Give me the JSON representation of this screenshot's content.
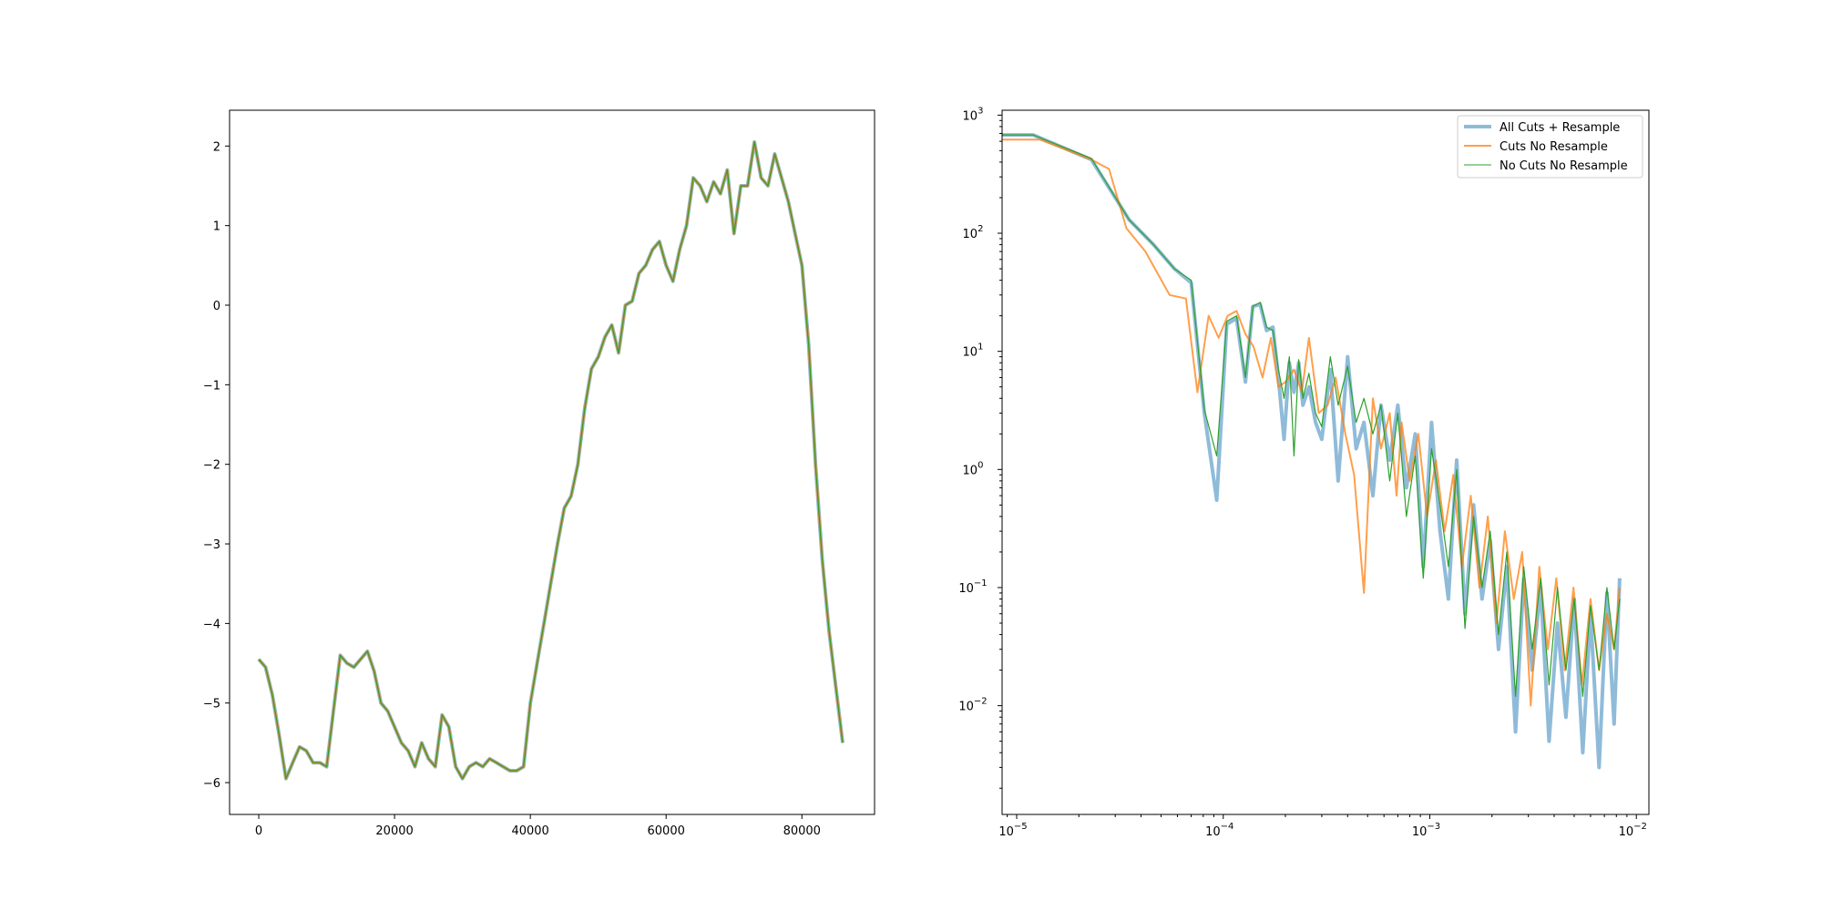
{
  "chart_data": [
    {
      "type": "line",
      "title": "",
      "xlabel": "",
      "ylabel": "",
      "xlim": [
        -4300,
        90700
      ],
      "ylim": [
        -6.4,
        2.45
      ],
      "xscale": "linear",
      "yscale": "linear",
      "xticks": [
        0,
        20000,
        40000,
        60000,
        80000
      ],
      "xtick_labels": [
        "0",
        "20000",
        "40000",
        "60000",
        "80000"
      ],
      "yticks": [
        2,
        1,
        0,
        -1,
        -2,
        -3,
        -4,
        -5,
        -6
      ],
      "ytick_labels": [
        "2",
        "1",
        "0",
        "−1",
        "−2",
        "−3",
        "−4",
        "−5",
        "−6"
      ],
      "grid": false,
      "series": [
        {
          "name": "All Cuts + Resample",
          "color": "#1f77b4",
          "x": [
            0,
            1000,
            2000,
            3000,
            4000,
            5000,
            6000,
            7000,
            8000,
            9000,
            10000,
            11000,
            12000,
            13000,
            14000,
            15000,
            16000,
            17000,
            18000,
            19000,
            20000,
            21000,
            22000,
            23000,
            24000,
            25000,
            26000,
            27000,
            28000,
            29000,
            30000,
            31000,
            32000,
            33000,
            34000,
            35000,
            36000,
            37000,
            38000,
            39000,
            40000,
            41000,
            42000,
            43000,
            44000,
            45000,
            46000,
            47000,
            48000,
            49000,
            50000,
            51000,
            52000,
            53000,
            54000,
            55000,
            56000,
            57000,
            58000,
            59000,
            60000,
            61000,
            62000,
            63000,
            64000,
            65000,
            66000,
            67000,
            68000,
            69000,
            70000,
            71000,
            72000,
            73000,
            74000,
            75000,
            76000,
            77000,
            78000,
            79000,
            80000,
            81000,
            82000,
            83000,
            84000,
            85000,
            86000
          ],
          "y": [
            -4.45,
            -4.55,
            -4.9,
            -5.4,
            -5.95,
            -5.75,
            -5.55,
            -5.6,
            -5.75,
            -5.75,
            -5.8,
            -5.1,
            -4.4,
            -4.5,
            -4.55,
            -4.45,
            -4.35,
            -4.6,
            -5.0,
            -5.1,
            -5.3,
            -5.5,
            -5.6,
            -5.8,
            -5.5,
            -5.7,
            -5.8,
            -5.15,
            -5.3,
            -5.8,
            -5.95,
            -5.8,
            -5.75,
            -5.8,
            -5.7,
            -5.75,
            -5.8,
            -5.85,
            -5.85,
            -5.8,
            -5.0,
            -4.5,
            -4.0,
            -3.5,
            -3.0,
            -2.55,
            -2.4,
            -2.0,
            -1.3,
            -0.8,
            -0.65,
            -0.4,
            -0.25,
            -0.6,
            0.0,
            0.05,
            0.4,
            0.5,
            0.7,
            0.8,
            0.5,
            0.3,
            0.7,
            1.0,
            1.6,
            1.5,
            1.3,
            1.55,
            1.4,
            1.7,
            0.9,
            1.5,
            1.5,
            2.05,
            1.6,
            1.5,
            1.9,
            1.6,
            1.3,
            0.9,
            0.5,
            -0.5,
            -2.0,
            -3.2,
            -4.1,
            -4.8,
            -5.5
          ]
        },
        {
          "name": "Cuts No Resample",
          "color": "#ff7f0e",
          "x": [
            0,
            1000,
            2000,
            3000,
            4000,
            5000,
            6000,
            7000,
            8000,
            9000,
            10000,
            11000,
            12000,
            13000,
            14000,
            15000,
            16000,
            17000,
            18000,
            19000,
            20000,
            21000,
            22000,
            23000,
            24000,
            25000,
            26000,
            27000,
            28000,
            29000,
            30000,
            31000,
            32000,
            33000,
            34000,
            35000,
            36000,
            37000,
            38000,
            39000,
            40000,
            41000,
            42000,
            43000,
            44000,
            45000,
            46000,
            47000,
            48000,
            49000,
            50000,
            51000,
            52000,
            53000,
            54000,
            55000,
            56000,
            57000,
            58000,
            59000,
            60000,
            61000,
            62000,
            63000,
            64000,
            65000,
            66000,
            67000,
            68000,
            69000,
            70000,
            71000,
            72000,
            73000,
            74000,
            75000,
            76000,
            77000,
            78000,
            79000,
            80000,
            81000,
            82000,
            83000,
            84000,
            85000,
            86000
          ],
          "y": [
            -4.45,
            -4.55,
            -4.9,
            -5.4,
            -5.95,
            -5.75,
            -5.55,
            -5.6,
            -5.75,
            -5.75,
            -5.8,
            -5.1,
            -4.4,
            -4.5,
            -4.55,
            -4.45,
            -4.35,
            -4.6,
            -5.0,
            -5.1,
            -5.3,
            -5.5,
            -5.6,
            -5.8,
            -5.5,
            -5.7,
            -5.8,
            -5.15,
            -5.3,
            -5.8,
            -5.95,
            -5.8,
            -5.75,
            -5.8,
            -5.7,
            -5.75,
            -5.8,
            -5.85,
            -5.85,
            -5.8,
            -5.0,
            -4.5,
            -4.0,
            -3.5,
            -3.0,
            -2.55,
            -2.4,
            -2.0,
            -1.3,
            -0.8,
            -0.65,
            -0.4,
            -0.25,
            -0.6,
            0.0,
            0.05,
            0.4,
            0.5,
            0.7,
            0.8,
            0.5,
            0.3,
            0.7,
            1.0,
            1.6,
            1.5,
            1.3,
            1.55,
            1.4,
            1.7,
            0.9,
            1.5,
            1.5,
            2.05,
            1.6,
            1.5,
            1.9,
            1.6,
            1.3,
            0.9,
            0.5,
            -0.5,
            -2.0,
            -3.2,
            -4.1,
            -4.8,
            -5.5
          ]
        },
        {
          "name": "No Cuts No Resample",
          "color": "#2ca02c",
          "x": [
            0,
            1000,
            2000,
            3000,
            4000,
            5000,
            6000,
            7000,
            8000,
            9000,
            10000,
            11000,
            12000,
            13000,
            14000,
            15000,
            16000,
            17000,
            18000,
            19000,
            20000,
            21000,
            22000,
            23000,
            24000,
            25000,
            26000,
            27000,
            28000,
            29000,
            30000,
            31000,
            32000,
            33000,
            34000,
            35000,
            36000,
            37000,
            38000,
            39000,
            40000,
            41000,
            42000,
            43000,
            44000,
            45000,
            46000,
            47000,
            48000,
            49000,
            50000,
            51000,
            52000,
            53000,
            54000,
            55000,
            56000,
            57000,
            58000,
            59000,
            60000,
            61000,
            62000,
            63000,
            64000,
            65000,
            66000,
            67000,
            68000,
            69000,
            70000,
            71000,
            72000,
            73000,
            74000,
            75000,
            76000,
            77000,
            78000,
            79000,
            80000,
            81000,
            82000,
            83000,
            84000,
            85000,
            86000
          ],
          "y": [
            -4.45,
            -4.55,
            -4.9,
            -5.4,
            -5.95,
            -5.75,
            -5.55,
            -5.6,
            -5.75,
            -5.75,
            -5.8,
            -5.1,
            -4.4,
            -4.5,
            -4.55,
            -4.45,
            -4.35,
            -4.6,
            -5.0,
            -5.1,
            -5.3,
            -5.5,
            -5.6,
            -5.8,
            -5.5,
            -5.7,
            -5.8,
            -5.15,
            -5.3,
            -5.8,
            -5.95,
            -5.8,
            -5.75,
            -5.8,
            -5.7,
            -5.75,
            -5.8,
            -5.85,
            -5.85,
            -5.8,
            -5.0,
            -4.5,
            -4.0,
            -3.5,
            -3.0,
            -2.55,
            -2.4,
            -2.0,
            -1.3,
            -0.8,
            -0.65,
            -0.4,
            -0.25,
            -0.6,
            0.0,
            0.05,
            0.4,
            0.5,
            0.7,
            0.8,
            0.5,
            0.3,
            0.7,
            1.0,
            1.6,
            1.5,
            1.3,
            1.55,
            1.4,
            1.7,
            0.9,
            1.5,
            1.5,
            2.05,
            1.6,
            1.5,
            1.9,
            1.6,
            1.3,
            0.9,
            0.5,
            -0.5,
            -2.0,
            -3.2,
            -4.1,
            -4.8,
            -5.5
          ]
        }
      ]
    },
    {
      "type": "line",
      "title": "",
      "xlabel": "",
      "ylabel": "",
      "xscale": "log",
      "yscale": "log",
      "xlim": [
        8.5e-06,
        0.0115
      ],
      "ylim": [
        0.0012,
        1100
      ],
      "xticks": [
        1e-05,
        0.0001,
        0.001,
        0.01
      ],
      "xtick_labels": [
        {
          "base": "10",
          "exp": "−5"
        },
        {
          "base": "10",
          "exp": "−4"
        },
        {
          "base": "10",
          "exp": "−3"
        },
        {
          "base": "10",
          "exp": "−2"
        }
      ],
      "yticks": [
        1000,
        100,
        10,
        1,
        0.1,
        0.01
      ],
      "ytick_labels": [
        {
          "base": "10",
          "exp": "3"
        },
        {
          "base": "10",
          "exp": "2"
        },
        {
          "base": "10",
          "exp": "1"
        },
        {
          "base": "10",
          "exp": "0"
        },
        {
          "base": "10",
          "exp": "−1"
        },
        {
          "base": "10",
          "exp": "−2"
        }
      ],
      "grid": false,
      "legend": {
        "loc": "upper right",
        "entries": [
          "All Cuts + Resample",
          "Cuts No Resample",
          "No Cuts No Resample"
        ]
      },
      "series": [
        {
          "name": "All Cuts + Resample",
          "color": "#1f77b4",
          "x": [
            8.5e-06,
            1.2e-05,
            2.3e-05,
            3.5e-05,
            4.6e-05,
            5.8e-05,
            7e-05,
            8.1e-05,
            9.3e-05,
            0.000104,
            0.000116,
            0.000128,
            0.000139,
            0.000151,
            0.000162,
            0.000174,
            0.000185,
            0.000197,
            0.000209,
            0.00022,
            0.000232,
            0.000243,
            0.00026,
            0.00028,
            0.0003,
            0.00033,
            0.00036,
            0.0004,
            0.00044,
            0.00048,
            0.00053,
            0.00058,
            0.00064,
            0.0007,
            0.00077,
            0.00085,
            0.00093,
            0.00102,
            0.00112,
            0.00123,
            0.00135,
            0.00148,
            0.00163,
            0.00179,
            0.00196,
            0.00215,
            0.00236,
            0.0026,
            0.00285,
            0.00313,
            0.00344,
            0.00378,
            0.00415,
            0.00456,
            0.005,
            0.0055,
            0.006,
            0.0066,
            0.0072,
            0.0078,
            0.0083
          ],
          "y": [
            680,
            680,
            420,
            130,
            80,
            50,
            38,
            3.0,
            0.55,
            17,
            19,
            5.5,
            24,
            25,
            15,
            16,
            6.0,
            1.8,
            8.0,
            4.5,
            8.0,
            3.5,
            5.0,
            2.5,
            1.8,
            7.0,
            0.8,
            9.0,
            1.5,
            2.5,
            0.6,
            3.5,
            1.2,
            3.5,
            0.7,
            2.0,
            0.15,
            2.5,
            0.3,
            0.08,
            1.2,
            0.06,
            0.5,
            0.08,
            0.25,
            0.03,
            0.15,
            0.006,
            0.12,
            0.02,
            0.1,
            0.005,
            0.05,
            0.008,
            0.08,
            0.004,
            0.06,
            0.003,
            0.09,
            0.007,
            0.12
          ]
        },
        {
          "name": "Cuts No Resample",
          "color": "#ff7f0e",
          "x": [
            8.5e-06,
            1.3e-05,
            2.3e-05,
            2.8e-05,
            3.4e-05,
            4.2e-05,
            5.5e-05,
            6.6e-05,
            7.5e-05,
            8.5e-05,
            9.5e-05,
            0.000105,
            0.000116,
            0.000128,
            0.00014,
            0.000155,
            0.00017,
            0.000185,
            0.0002,
            0.00022,
            0.00024,
            0.00026,
            0.00029,
            0.00032,
            0.00035,
            0.00039,
            0.00043,
            0.00048,
            0.00053,
            0.00058,
            0.00064,
            0.00069,
            0.00073,
            0.0008,
            0.00088,
            0.00097,
            0.00107,
            0.00118,
            0.0013,
            0.00143,
            0.00158,
            0.00174,
            0.00191,
            0.0021,
            0.00231,
            0.00255,
            0.0028,
            0.00308,
            0.00339,
            0.00373,
            0.0041,
            0.0045,
            0.00496,
            0.00545,
            0.006,
            0.0066,
            0.0072,
            0.0078,
            0.0083
          ],
          "y": [
            620,
            620,
            420,
            350,
            110,
            70,
            30,
            28,
            4.5,
            20,
            13,
            20,
            22,
            14,
            11,
            6.0,
            13,
            5.0,
            5.5,
            7.0,
            4.5,
            13,
            3.0,
            3.5,
            6.0,
            2.0,
            0.9,
            0.09,
            4.0,
            1.5,
            3.0,
            0.6,
            2.5,
            0.8,
            2.0,
            0.4,
            1.2,
            0.3,
            0.9,
            0.15,
            0.6,
            0.1,
            0.4,
            0.05,
            0.3,
            0.08,
            0.2,
            0.01,
            0.15,
            0.03,
            0.12,
            0.02,
            0.1,
            0.015,
            0.08,
            0.02,
            0.06,
            0.03,
            0.1
          ]
        },
        {
          "name": "No Cuts No Resample",
          "color": "#2ca02c",
          "x": [
            8.5e-06,
            1.2e-05,
            2.3e-05,
            3.5e-05,
            4.6e-05,
            5.8e-05,
            7e-05,
            8.1e-05,
            9.3e-05,
            0.000104,
            0.000116,
            0.000128,
            0.000139,
            0.000151,
            0.000162,
            0.000174,
            0.000185,
            0.000197,
            0.000209,
            0.00022,
            0.000232,
            0.000243,
            0.00026,
            0.00028,
            0.0003,
            0.00033,
            0.00036,
            0.0004,
            0.00044,
            0.00048,
            0.00053,
            0.00058,
            0.00064,
            0.0007,
            0.00077,
            0.00085,
            0.00093,
            0.00102,
            0.00112,
            0.00123,
            0.00135,
            0.00148,
            0.00163,
            0.00179,
            0.00196,
            0.00215,
            0.00236,
            0.0026,
            0.00285,
            0.00313,
            0.00344,
            0.00378,
            0.00415,
            0.00456,
            0.005,
            0.0055,
            0.006,
            0.0066,
            0.0072,
            0.0078,
            0.0083
          ],
          "y": [
            680,
            680,
            430,
            130,
            80,
            50,
            40,
            3.2,
            1.3,
            18,
            20,
            6.0,
            24,
            26,
            16,
            15,
            7.0,
            4.0,
            9.0,
            1.3,
            8.5,
            4.0,
            6.5,
            3.0,
            2.3,
            9.0,
            3.5,
            7.5,
            2.5,
            4.0,
            2.0,
            3.5,
            0.8,
            3.0,
            0.4,
            1.3,
            0.12,
            1.5,
            0.5,
            0.15,
            1.0,
            0.045,
            0.4,
            0.1,
            0.3,
            0.04,
            0.2,
            0.012,
            0.15,
            0.03,
            0.12,
            0.015,
            0.1,
            0.02,
            0.08,
            0.012,
            0.07,
            0.02,
            0.1,
            0.03,
            0.08
          ]
        }
      ]
    }
  ]
}
